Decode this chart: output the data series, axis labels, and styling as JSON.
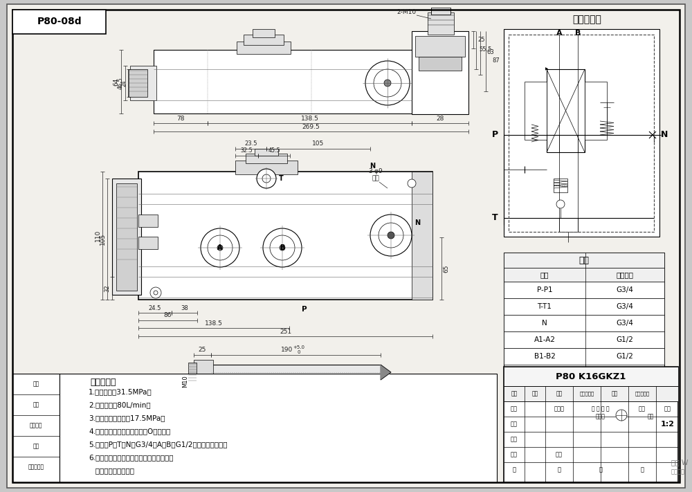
{
  "bg_color": "#c8c8c8",
  "drawing_bg": "#f5f5f0",
  "line_color": "#000000",
  "dim_color": "#222222",
  "title_box_text": "P80-08d",
  "hydraulic_title": "液压原理图",
  "tech_req_title": "技术要求：",
  "tech_reqs": [
    "1.公称压力：31.5MPa；",
    "2.公称流量：80L/min；",
    "3.溢流阀调定压力：17.5MPa；",
    "4.控制方式：手动控制，前推O型阀杆；",
    "5.油口：P、T、N为G3/4；A、B为G1/2；均为平面密封；",
    "6.阀体表面磷化处理，安全阀及螺墅镀锌，",
    "   支架后盖为铝本色。"
  ],
  "valve_table_title": "阀体",
  "valve_table_headers": [
    "接口",
    "螺纹规格"
  ],
  "valve_table_rows": [
    [
      "P-P1",
      "G3/4"
    ],
    [
      "T-T1",
      "G3/4"
    ],
    [
      "N",
      "G3/4"
    ],
    [
      "A1-A2",
      "G1/2"
    ],
    [
      "B1-B2",
      "G1/2"
    ]
  ],
  "title_block_model": "P80 K16GKZ1",
  "title_block_scale": "1:2",
  "stamp_labels": [
    "标记",
    "分区",
    "根据文件",
    "签名",
    "年、月、日"
  ],
  "tb_rows": [
    "设计",
    "标准化",
    "批 良 标 记",
    "重量",
    "比例"
  ],
  "tb_rows2": [
    "设计",
    "",
    "批 良 标 记",
    "",
    "比例"
  ],
  "watermark1": "激活 W",
  "watermark2": "转影仓库"
}
